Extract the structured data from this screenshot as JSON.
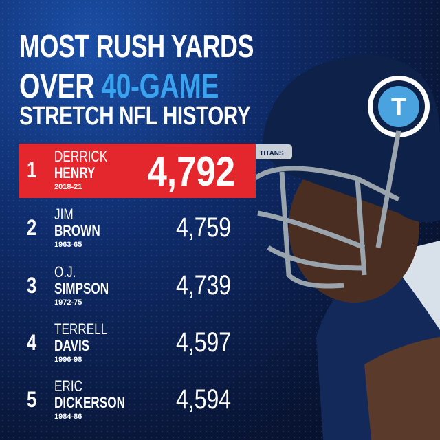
{
  "title": {
    "line1": "MOST RUSH YARDS",
    "line2_prefix": "OVER ",
    "line2_accent": "40-GAME",
    "line3": "STRETCH NFL HISTORY"
  },
  "colors": {
    "accent": "#3aa3f0",
    "highlight": "#e3272d",
    "background": "#0f2c6b"
  },
  "rankings": [
    {
      "rank": "1",
      "first": "DERRICK",
      "last": "HENRY",
      "years": "2018-21",
      "yards": "4,792"
    },
    {
      "rank": "2",
      "first": "JIM",
      "last": "BROWN",
      "years": "1963-65",
      "yards": "4,759"
    },
    {
      "rank": "3",
      "first": "O.J.",
      "last": "SIMPSON",
      "years": "1972-75",
      "yards": "4,739"
    },
    {
      "rank": "4",
      "first": "TERRELL",
      "last": "DAVIS",
      "years": "1996-98",
      "yards": "4,597"
    },
    {
      "rank": "5",
      "first": "ERIC",
      "last": "DICKERSON",
      "years": "1984-86",
      "yards": "4,594"
    }
  ],
  "photo": {
    "subject": "player-in-titans-helmet",
    "helmet_text": "TITANS"
  }
}
